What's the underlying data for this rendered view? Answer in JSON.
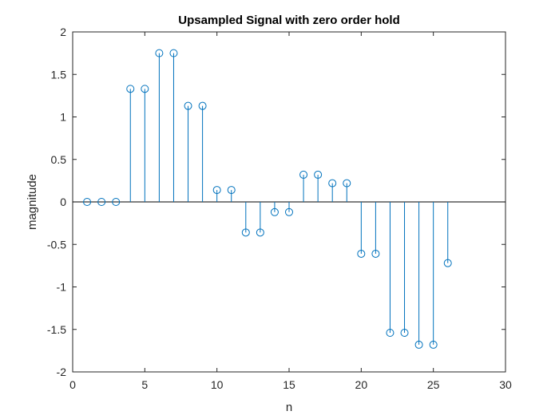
{
  "chart_data": {
    "type": "stem",
    "title": "Upsampled Signal with zero order hold",
    "xlabel": "n",
    "ylabel": "magnitude",
    "xlim": [
      0,
      30
    ],
    "ylim": [
      -2,
      2
    ],
    "xticks": [
      0,
      5,
      10,
      15,
      20,
      25,
      30
    ],
    "xticklabels": [
      "0",
      "5",
      "10",
      "15",
      "20",
      "25",
      "30"
    ],
    "yticks": [
      2,
      1.5,
      1,
      0.5,
      0,
      -0.5,
      -1,
      -1.5,
      -2
    ],
    "yticklabels": [
      "2",
      "1.5",
      "1",
      "0.5",
      "0",
      "-0.5",
      "-1",
      "-1.5",
      "-2"
    ],
    "grid": false,
    "baseline": 0,
    "marker": "circle",
    "color": "#0072BD",
    "series": [
      {
        "x": [
          1,
          2,
          3,
          4,
          5,
          6,
          7,
          8,
          9,
          10,
          11,
          12,
          13,
          14,
          15,
          16,
          17,
          18,
          19,
          20,
          21,
          22,
          23,
          24,
          25,
          26
        ],
        "y": [
          0,
          0,
          0,
          1.33,
          1.33,
          1.75,
          1.75,
          1.13,
          1.13,
          0.14,
          0.14,
          -0.36,
          -0.36,
          -0.12,
          -0.12,
          0.32,
          0.32,
          0.22,
          0.22,
          -0.61,
          -0.61,
          -1.54,
          -1.54,
          -1.68,
          -1.68,
          -0.72
        ]
      }
    ]
  }
}
